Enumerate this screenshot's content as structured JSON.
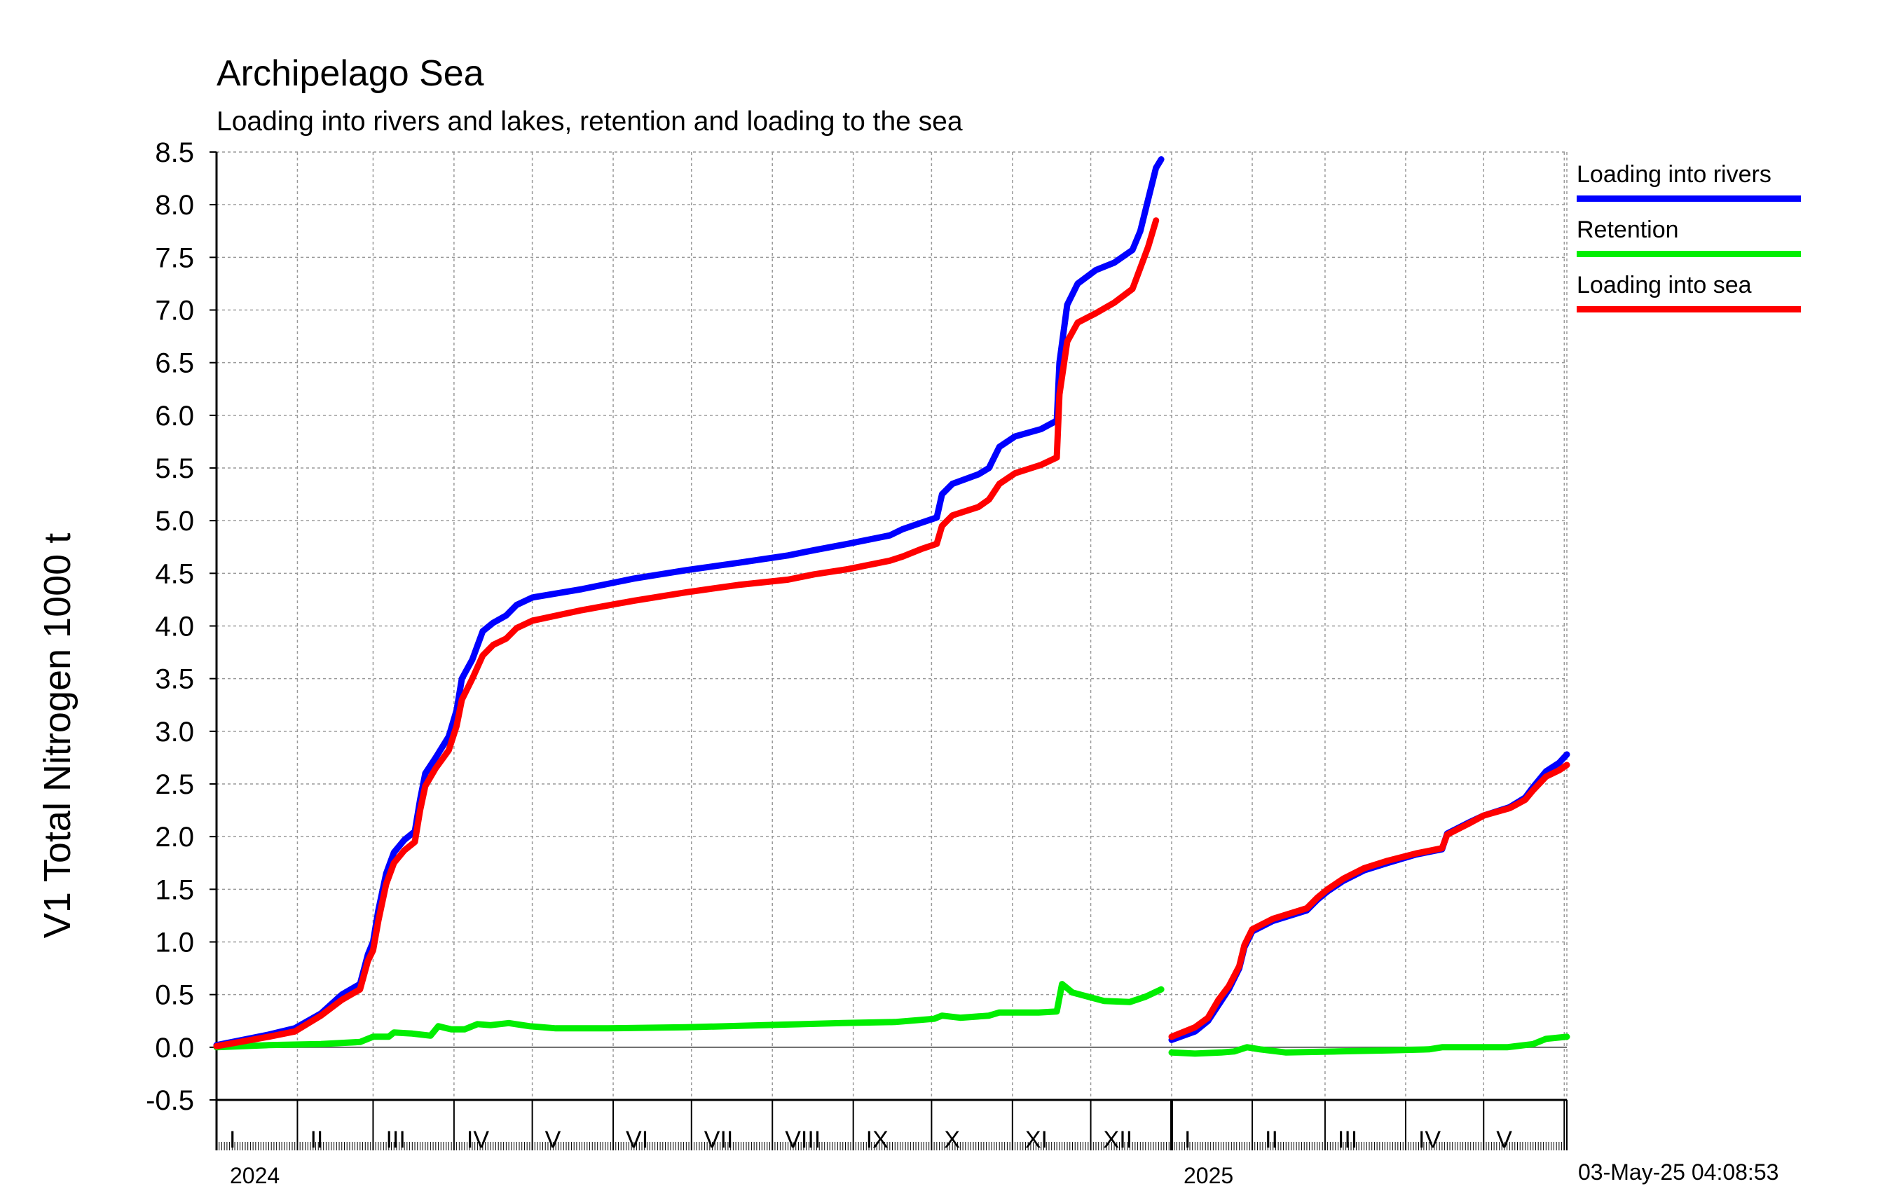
{
  "title": "Archipelago Sea",
  "subtitle": "Loading into rivers and lakes, retention and loading to the sea",
  "timestamp": "03-May-25 04:08:53",
  "chart_data": {
    "type": "line",
    "ylabel": "V1 Total Nitrogen 1000 t",
    "ylim": [
      -0.5,
      8.5
    ],
    "yticks": [
      "8.5",
      "8.0",
      "7.5",
      "7.0",
      "6.5",
      "6.0",
      "5.5",
      "5.0",
      "4.5",
      "4.0",
      "3.5",
      "3.0",
      "2.5",
      "2.0",
      "1.5",
      "1.0",
      "0.5",
      "0.0",
      "-0.5"
    ],
    "grid": true,
    "legend_position": "right",
    "years": [
      {
        "label": "2024",
        "months": [
          "I",
          "II",
          "III",
          "IV",
          "V",
          "VI",
          "VII",
          "VIII",
          "IX",
          "X",
          "XI",
          "XII"
        ]
      },
      {
        "label": "2025",
        "months": [
          "I",
          "II",
          "III",
          "IV",
          "V"
        ]
      }
    ],
    "series": [
      {
        "name": "Loading into rivers",
        "color": "#0000ff",
        "segments": [
          [
            [
              0,
              0.02
            ],
            [
              20,
              0.12
            ],
            [
              30,
              0.18
            ],
            [
              40,
              0.32
            ],
            [
              48,
              0.5
            ],
            [
              55,
              0.6
            ],
            [
              58,
              0.88
            ],
            [
              60,
              1.0
            ],
            [
              62,
              1.3
            ],
            [
              65,
              1.65
            ],
            [
              68,
              1.85
            ],
            [
              72,
              1.97
            ],
            [
              76,
              2.05
            ],
            [
              78,
              2.35
            ],
            [
              80,
              2.6
            ],
            [
              84,
              2.75
            ],
            [
              89,
              2.95
            ],
            [
              92,
              3.2
            ],
            [
              94,
              3.5
            ],
            [
              98,
              3.68
            ],
            [
              102,
              3.95
            ],
            [
              106,
              4.03
            ],
            [
              111,
              4.1
            ],
            [
              115,
              4.2
            ],
            [
              121,
              4.27
            ],
            [
              140,
              4.35
            ],
            [
              160,
              4.45
            ],
            [
              180,
              4.53
            ],
            [
              200,
              4.6
            ],
            [
              219,
              4.67
            ],
            [
              229,
              4.72
            ],
            [
              242,
              4.78
            ],
            [
              258,
              4.86
            ],
            [
              263,
              4.92
            ],
            [
              270,
              4.98
            ],
            [
              276,
              5.03
            ],
            [
              278,
              5.25
            ],
            [
              282,
              5.35
            ],
            [
              292,
              5.44
            ],
            [
              296,
              5.5
            ],
            [
              300,
              5.7
            ],
            [
              306,
              5.8
            ],
            [
              316,
              5.87
            ],
            [
              322,
              5.95
            ],
            [
              323,
              6.5
            ],
            [
              326,
              7.05
            ],
            [
              330,
              7.25
            ],
            [
              337,
              7.38
            ],
            [
              344,
              7.45
            ],
            [
              351,
              7.57
            ],
            [
              354,
              7.75
            ],
            [
              357,
              8.05
            ],
            [
              360,
              8.35
            ],
            [
              362,
              8.43
            ]
          ],
          [
            [
              366,
              0.07
            ],
            [
              375,
              0.15
            ],
            [
              380,
              0.25
            ],
            [
              384,
              0.4
            ],
            [
              388,
              0.55
            ],
            [
              392,
              0.75
            ],
            [
              394,
              0.95
            ],
            [
              397,
              1.1
            ],
            [
              405,
              1.2
            ],
            [
              418,
              1.3
            ],
            [
              422,
              1.4
            ],
            [
              426,
              1.48
            ],
            [
              432,
              1.58
            ],
            [
              440,
              1.68
            ],
            [
              449,
              1.75
            ],
            [
              460,
              1.83
            ],
            [
              470,
              1.88
            ],
            [
              472,
              2.03
            ],
            [
              480,
              2.13
            ],
            [
              486,
              2.2
            ],
            [
              496,
              2.28
            ],
            [
              502,
              2.37
            ],
            [
              505,
              2.47
            ],
            [
              510,
              2.62
            ],
            [
              515,
              2.7
            ],
            [
              518,
              2.78
            ]
          ]
        ]
      },
      {
        "name": "Retention",
        "color": "#00ee00",
        "segments": [
          [
            [
              0,
              0.0
            ],
            [
              20,
              0.02
            ],
            [
              40,
              0.03
            ],
            [
              55,
              0.05
            ],
            [
              60,
              0.1
            ],
            [
              66,
              0.1
            ],
            [
              68,
              0.14
            ],
            [
              75,
              0.13
            ],
            [
              82,
              0.11
            ],
            [
              85,
              0.2
            ],
            [
              90,
              0.17
            ],
            [
              95,
              0.17
            ],
            [
              100,
              0.22
            ],
            [
              105,
              0.21
            ],
            [
              112,
              0.23
            ],
            [
              120,
              0.2
            ],
            [
              130,
              0.18
            ],
            [
              150,
              0.18
            ],
            [
              180,
              0.19
            ],
            [
              210,
              0.21
            ],
            [
              240,
              0.23
            ],
            [
              260,
              0.24
            ],
            [
              275,
              0.27
            ],
            [
              278,
              0.3
            ],
            [
              285,
              0.28
            ],
            [
              296,
              0.3
            ],
            [
              300,
              0.33
            ],
            [
              315,
              0.33
            ],
            [
              322,
              0.34
            ],
            [
              324,
              0.6
            ],
            [
              328,
              0.52
            ],
            [
              340,
              0.44
            ],
            [
              350,
              0.43
            ],
            [
              356,
              0.48
            ],
            [
              362,
              0.55
            ]
          ],
          [
            [
              366,
              -0.05
            ],
            [
              375,
              -0.06
            ],
            [
              385,
              -0.05
            ],
            [
              390,
              -0.04
            ],
            [
              395,
              0.0
            ],
            [
              400,
              -0.02
            ],
            [
              410,
              -0.05
            ],
            [
              430,
              -0.04
            ],
            [
              450,
              -0.03
            ],
            [
              465,
              -0.02
            ],
            [
              470,
              0.0
            ],
            [
              480,
              0.0
            ],
            [
              495,
              0.0
            ],
            [
              505,
              0.03
            ],
            [
              510,
              0.08
            ],
            [
              518,
              0.1
            ]
          ]
        ]
      },
      {
        "name": "Loading into sea",
        "color": "#ff0000",
        "segments": [
          [
            [
              0,
              0.01
            ],
            [
              20,
              0.1
            ],
            [
              30,
              0.15
            ],
            [
              40,
              0.3
            ],
            [
              48,
              0.45
            ],
            [
              55,
              0.55
            ],
            [
              58,
              0.82
            ],
            [
              60,
              0.92
            ],
            [
              62,
              1.2
            ],
            [
              65,
              1.55
            ],
            [
              68,
              1.75
            ],
            [
              72,
              1.87
            ],
            [
              76,
              1.95
            ],
            [
              78,
              2.25
            ],
            [
              80,
              2.48
            ],
            [
              84,
              2.65
            ],
            [
              89,
              2.82
            ],
            [
              92,
              3.05
            ],
            [
              94,
              3.3
            ],
            [
              98,
              3.5
            ],
            [
              102,
              3.72
            ],
            [
              106,
              3.82
            ],
            [
              111,
              3.88
            ],
            [
              115,
              3.98
            ],
            [
              121,
              4.05
            ],
            [
              140,
              4.15
            ],
            [
              160,
              4.24
            ],
            [
              180,
              4.32
            ],
            [
              200,
              4.39
            ],
            [
              219,
              4.44
            ],
            [
              229,
              4.49
            ],
            [
              242,
              4.54
            ],
            [
              258,
              4.62
            ],
            [
              263,
              4.66
            ],
            [
              270,
              4.73
            ],
            [
              276,
              4.78
            ],
            [
              278,
              4.95
            ],
            [
              282,
              5.05
            ],
            [
              292,
              5.13
            ],
            [
              296,
              5.2
            ],
            [
              300,
              5.35
            ],
            [
              306,
              5.45
            ],
            [
              316,
              5.53
            ],
            [
              322,
              5.6
            ],
            [
              323,
              6.2
            ],
            [
              326,
              6.7
            ],
            [
              330,
              6.88
            ],
            [
              337,
              6.97
            ],
            [
              344,
              7.07
            ],
            [
              351,
              7.2
            ],
            [
              354,
              7.4
            ],
            [
              357,
              7.6
            ],
            [
              360,
              7.85
            ]
          ],
          [
            [
              366,
              0.1
            ],
            [
              375,
              0.19
            ],
            [
              380,
              0.28
            ],
            [
              384,
              0.45
            ],
            [
              388,
              0.58
            ],
            [
              392,
              0.77
            ],
            [
              394,
              0.97
            ],
            [
              397,
              1.12
            ],
            [
              405,
              1.22
            ],
            [
              418,
              1.32
            ],
            [
              422,
              1.42
            ],
            [
              426,
              1.5
            ],
            [
              432,
              1.6
            ],
            [
              440,
              1.7
            ],
            [
              449,
              1.77
            ],
            [
              460,
              1.84
            ],
            [
              470,
              1.89
            ],
            [
              472,
              2.02
            ],
            [
              480,
              2.12
            ],
            [
              486,
              2.2
            ],
            [
              496,
              2.27
            ],
            [
              502,
              2.35
            ],
            [
              505,
              2.44
            ],
            [
              510,
              2.57
            ],
            [
              515,
              2.63
            ],
            [
              518,
              2.68
            ]
          ]
        ]
      }
    ]
  }
}
